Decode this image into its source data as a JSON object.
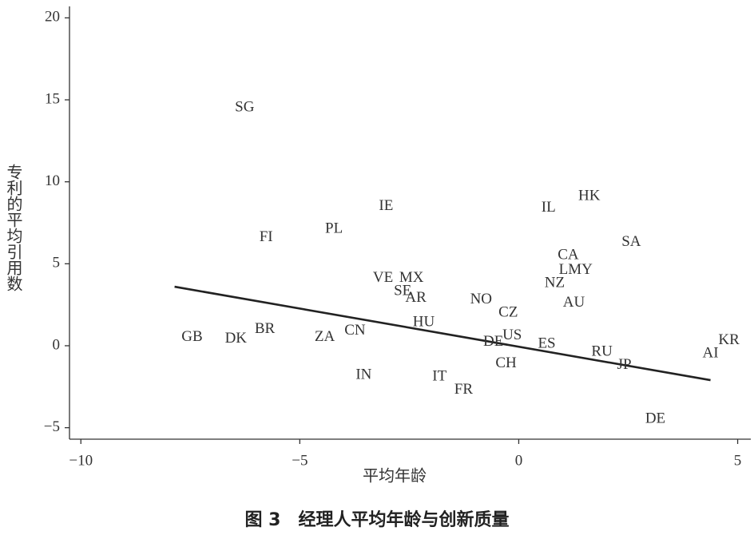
{
  "chart_data": {
    "type": "scatter",
    "title": "图 3　经理人平均年龄与创新质量",
    "xlabel": "平均年龄",
    "ylabel": "专利的平均引用数",
    "xlim": [
      -10.26,
      5.3
    ],
    "ylim": [
      -5.7,
      20.7
    ],
    "xticks": [
      {
        "value": -10,
        "label": "−10"
      },
      {
        "value": -5,
        "label": "−5"
      },
      0,
      5
    ],
    "yticks": [
      {
        "value": -5,
        "label": "−5"
      },
      0,
      5,
      10,
      15,
      20
    ],
    "labels": [
      "SG",
      "IE",
      "FI",
      "PL",
      "VE",
      "MX",
      "SE",
      "AR",
      "HU",
      "NO",
      "CZ",
      "DE",
      "US",
      "CH",
      "ES",
      "IL",
      "HK",
      "CA",
      "LMY",
      "NZ",
      "AU",
      "SA",
      "RU",
      "JP",
      "AI",
      "KR",
      "DE",
      "GB",
      "DK",
      "BR",
      "ZA",
      "CN",
      "IN",
      "IT",
      "FR"
    ],
    "x": [
      -6.26,
      -3.03,
      -5.77,
      -4.22,
      -3.1,
      -2.45,
      -2.65,
      -2.35,
      -2.17,
      -0.86,
      -0.24,
      -0.58,
      -0.15,
      -0.29,
      0.64,
      0.68,
      1.61,
      1.13,
      1.3,
      0.82,
      1.26,
      2.57,
      1.9,
      2.41,
      4.38,
      4.8,
      3.12,
      -7.46,
      -6.46,
      -5.8,
      -4.43,
      -3.74,
      -3.54,
      -1.81,
      -1.26
    ],
    "y": [
      14.5,
      8.5,
      6.6,
      7.1,
      4.1,
      4.1,
      3.3,
      2.9,
      1.4,
      2.8,
      2.0,
      0.2,
      0.6,
      -1.1,
      0.1,
      8.4,
      9.1,
      5.5,
      4.6,
      3.8,
      2.6,
      6.3,
      -0.4,
      -1.2,
      -0.5,
      0.3,
      -4.5,
      0.5,
      0.4,
      1.0,
      0.5,
      0.9,
      -1.8,
      -1.9,
      -2.7
    ],
    "fit_line": {
      "x": [
        -7.86,
        4.38
      ],
      "y": [
        3.6,
        -2.1
      ],
      "color": "#222"
    }
  }
}
